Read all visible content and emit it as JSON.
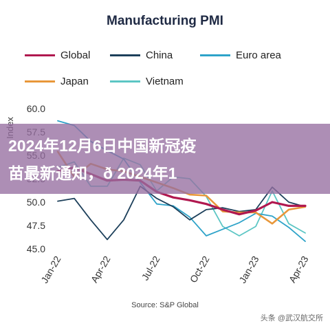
{
  "overlay": {
    "line1": "2024年12月6日中国新冠疫",
    "line2": "苗最新通知，ð 2024年1"
  },
  "source": "Source: S&P Global",
  "watermark": "头条 @武汉航交所",
  "chart_data": {
    "type": "line",
    "title": "Manufacturing PMI",
    "ylabel": "Index",
    "ylim": [
      45.0,
      60.0
    ],
    "yticks": [
      "45.0",
      "47.5",
      "50.0",
      "52.5",
      "55.0",
      "57.5",
      "60.0"
    ],
    "x": [
      "Jan-22",
      "Feb-22",
      "Mar-22",
      "Apr-22",
      "May-22",
      "Jun-22",
      "Jul-22",
      "Aug-22",
      "Sep-22",
      "Oct-22",
      "Nov-22",
      "Dec-22",
      "Jan-23",
      "Feb-23",
      "Mar-23",
      "Apr-23"
    ],
    "xticks": [
      "Jan-22",
      "Apr-22",
      "Jul-22",
      "Oct-22",
      "Jan-23",
      "Apr-23"
    ],
    "grid": false,
    "legend_position": "top",
    "series": [
      {
        "name": "Global",
        "color": "#b0184f",
        "values": [
          53.3,
          53.7,
          53.0,
          52.3,
          52.4,
          52.3,
          51.1,
          50.5,
          50.2,
          49.8,
          49.2,
          48.7,
          49.1,
          50.0,
          49.6,
          49.6
        ]
      },
      {
        "name": "China",
        "color": "#1c3f5a",
        "values": [
          50.1,
          50.4,
          48.1,
          46.0,
          48.1,
          51.7,
          50.4,
          49.5,
          48.1,
          49.2,
          49.4,
          49.0,
          49.2,
          51.6,
          50.0,
          49.5
        ]
      },
      {
        "name": "Euro area",
        "color": "#2ea3c9",
        "values": [
          58.7,
          58.2,
          56.5,
          55.5,
          54.6,
          52.1,
          49.8,
          49.6,
          48.4,
          46.4,
          47.1,
          47.8,
          48.8,
          48.5,
          47.3,
          45.8
        ]
      },
      {
        "name": "Japan",
        "color": "#e8973a",
        "values": [
          55.4,
          52.7,
          54.1,
          53.5,
          53.3,
          52.7,
          52.1,
          51.5,
          50.8,
          50.7,
          49.0,
          48.9,
          48.9,
          47.7,
          49.2,
          49.5
        ]
      },
      {
        "name": "Vietnam",
        "color": "#5cc6c4",
        "values": [
          53.7,
          54.3,
          51.7,
          51.7,
          54.7,
          54.0,
          51.2,
          52.7,
          52.5,
          50.6,
          47.4,
          46.4,
          47.4,
          51.2,
          47.7,
          46.7
        ]
      }
    ]
  }
}
